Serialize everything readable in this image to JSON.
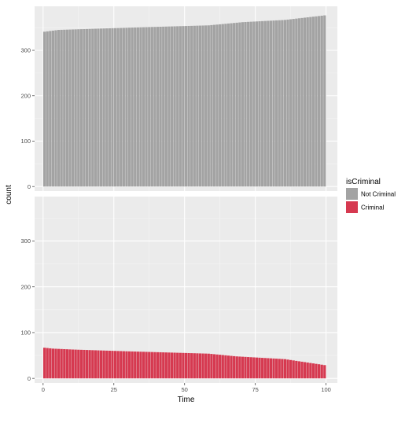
{
  "chart_data": {
    "type": "bar",
    "layout": "faceted",
    "xlabel": "Time",
    "ylabel": "count",
    "xlim": [
      -3,
      104
    ],
    "ylim": [
      -10,
      397
    ],
    "x_ticks": [
      0,
      25,
      50,
      75,
      100
    ],
    "y_ticks": [
      0,
      100,
      200,
      300
    ],
    "grid": true,
    "legend": {
      "title": "isCriminal",
      "placement": "right",
      "entries": [
        {
          "label": "Not Criminal",
          "color": "#a3a3a3"
        },
        {
          "label": "Criminal",
          "color": "#d63950"
        }
      ]
    },
    "panels": [
      {
        "series": "Not Criminal",
        "color": "#a3a3a3",
        "x_range": [
          0,
          99
        ],
        "profile": [
          {
            "x": 0,
            "y": 341
          },
          {
            "x": 5,
            "y": 345
          },
          {
            "x": 30,
            "y": 350
          },
          {
            "x": 58,
            "y": 355
          },
          {
            "x": 70,
            "y": 362
          },
          {
            "x": 85,
            "y": 367
          },
          {
            "x": 99,
            "y": 377
          }
        ]
      },
      {
        "series": "Criminal",
        "color": "#d63950",
        "x_range": [
          0,
          99
        ],
        "profile": [
          {
            "x": 0,
            "y": 67
          },
          {
            "x": 3,
            "y": 65
          },
          {
            "x": 10,
            "y": 63
          },
          {
            "x": 30,
            "y": 59
          },
          {
            "x": 58,
            "y": 54
          },
          {
            "x": 68,
            "y": 48
          },
          {
            "x": 85,
            "y": 42
          },
          {
            "x": 99,
            "y": 29
          }
        ]
      }
    ]
  }
}
